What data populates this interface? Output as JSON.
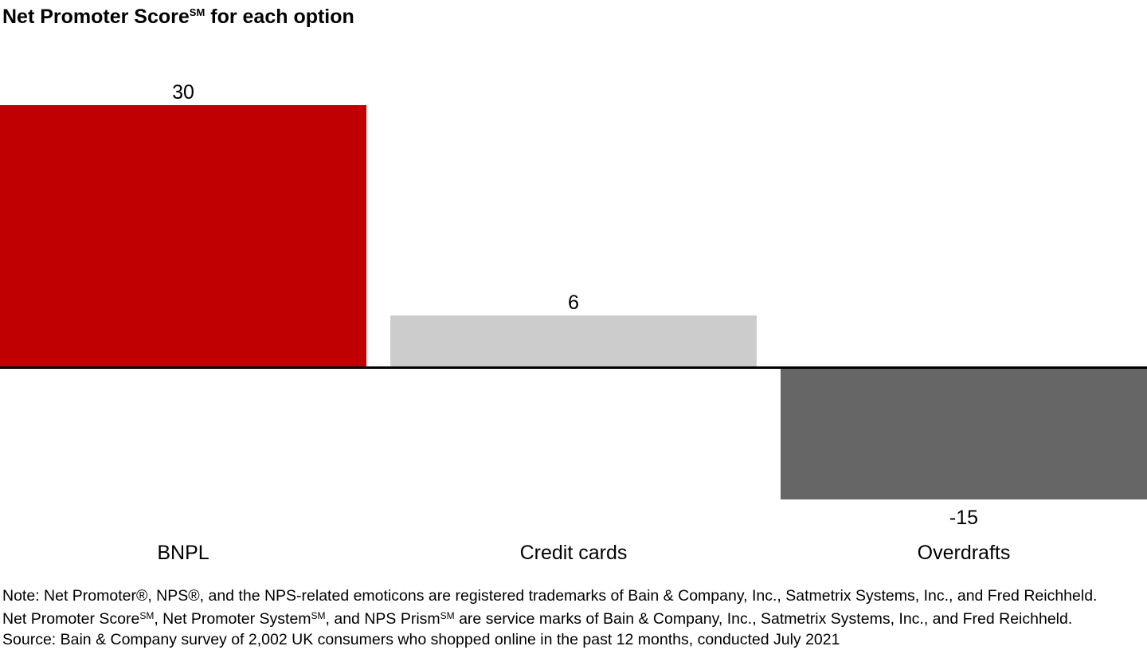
{
  "header": {
    "title_main": "Net Promoter Score",
    "title_sup": "SM",
    "title_rest": " for each option"
  },
  "chart_data": {
    "type": "bar",
    "title": "Net Promoter Score℠ for each option",
    "categories": [
      "BNPL",
      "Credit cards",
      "Overdrafts"
    ],
    "values": [
      30,
      6,
      -15
    ],
    "value_labels": [
      "30",
      "6",
      "-15"
    ],
    "bar_colors": [
      "#c00000",
      "#cccccc",
      "#666666"
    ],
    "xlabel": "",
    "ylabel": "",
    "ylim": [
      -15,
      30
    ],
    "baseline_value": 0,
    "axis_line_color": "#000000",
    "grid": false,
    "legend": false,
    "value_label_position": "outside-end",
    "background": "#ffffff"
  },
  "footnote": {
    "line1": "Note: Net Promoter®, NPS®, and the NPS-related emoticons are registered trademarks of Bain & Company, Inc., Satmetrix Systems, Inc., and Fred Reichheld.",
    "line2_p1": "Net Promoter Score",
    "line2_s1": "SM",
    "line2_p2": ", Net Promoter System",
    "line2_s2": "SM",
    "line2_p3": ", and NPS Prism",
    "line2_s3": "SM",
    "line2_p4": " are service marks of Bain & Company, Inc., Satmetrix Systems, Inc., and Fred Reichheld.",
    "line3": "Source: Bain & Company survey of 2,002 UK consumers who shopped online in the past 12 months, conducted July 2021"
  }
}
